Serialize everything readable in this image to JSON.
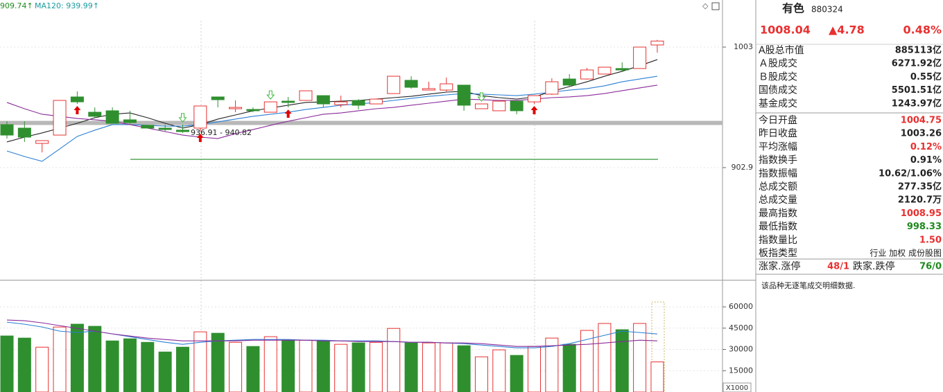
{
  "chart_data": [
    {
      "type": "candlestick",
      "up_color": "#e83030",
      "down_color": "#2f8f2f",
      "open": [
        938.6,
        935.7,
        923.0,
        929.9,
        961.6,
        948.9,
        950.1,
        942.6,
        938.0,
        935.7,
        934.0,
        935.7,
        961.6,
        951.8,
        951.2,
        948.9,
        958.1,
        958.7,
        962.7,
        955.2,
        958.7,
        955.8,
        964.4,
        975.4,
        967.3,
        967.3,
        971.4,
        951.8,
        950.1,
        958.1,
        957.5,
        963.9,
        976.5,
        976.5,
        980.6,
        985.2,
        985.2,
        1004.75
      ],
      "high": [
        941.4,
        941.4,
        925.3,
        958.7,
        966.2,
        952.9,
        952.9,
        950.1,
        938.6,
        938.6,
        938.6,
        954.1,
        961.6,
        958.7,
        952.9,
        957.5,
        961.6,
        966.7,
        962.7,
        962.7,
        959.8,
        959.8,
        978.8,
        978.8,
        974.2,
        977.7,
        971.4,
        955.8,
        958.1,
        958.1,
        962.7,
        977.1,
        980.6,
        985.7,
        986.3,
        990.3,
        1003,
        1008.95
      ],
      "low": [
        927.0,
        924.2,
        915.5,
        929.9,
        955.8,
        944.3,
        939.7,
        938.6,
        935.7,
        932.8,
        931.7,
        932.8,
        952.9,
        948.9,
        948.9,
        948.9,
        952.9,
        958.7,
        952.9,
        952.9,
        951.2,
        955.8,
        964.4,
        968.5,
        967.3,
        966.2,
        950.1,
        951.8,
        950.1,
        947.2,
        955.8,
        963.3,
        970.2,
        976.0,
        980.6,
        982.3,
        985.2,
        998.33
      ],
      "close": [
        929.9,
        928.2,
        925.3,
        958.7,
        957.5,
        945.5,
        939.7,
        940.3,
        935.7,
        934.5,
        932.8,
        954.1,
        959.3,
        952.9,
        950.1,
        957.5,
        957.0,
        966.7,
        955.8,
        957.5,
        954.7,
        959.8,
        978.8,
        969.6,
        968.5,
        972.5,
        954.7,
        955.8,
        958.1,
        950.1,
        962.7,
        974.2,
        971.4,
        984.0,
        986.3,
        984.0,
        1003,
        1008.04
      ],
      "ylim": [
        809.67,
        1042.13
      ],
      "yticks": [
        1003,
        902.9
      ],
      "series": [
        {
          "color": "#222222",
          "values": [
            924.2,
            928.2,
            931.7,
            935.7,
            939.7,
            944.3,
            947.2,
            948.3,
            944.3,
            939.7,
            935.7,
            938.6,
            943.2,
            946.6,
            950.1,
            952.4,
            954.7,
            957.0,
            957.5,
            958.1,
            958.7,
            959.8,
            961.0,
            962.1,
            963.9,
            965.6,
            966.2,
            962.7,
            961.0,
            959.8,
            961.6,
            966.2,
            970.2,
            974.2,
            978.8,
            982.9,
            987.5,
            992.6
          ]
        },
        {
          "color": "#2a7fd4",
          "values": [
            916.7,
            912.1,
            908.1,
            918.4,
            928.8,
            934.0,
            938.6,
            938.6,
            938.0,
            937.4,
            937.4,
            938.6,
            940.9,
            943.2,
            945.5,
            947.2,
            948.9,
            951.2,
            952.9,
            954.7,
            955.8,
            957.0,
            958.7,
            960.4,
            962.1,
            963.3,
            964.4,
            963.9,
            963.3,
            962.7,
            963.9,
            965.6,
            967.3,
            968.5,
            970.8,
            974.2,
            976.5,
            978.8
          ]
        },
        {
          "color": "#8a2a9a",
          "values": [
            957.0,
            951.8,
            947.2,
            945.5,
            943.7,
            942.6,
            941.4,
            938.6,
            935.7,
            932.8,
            929.9,
            928.2,
            927.0,
            931.1,
            934.5,
            938.0,
            941.4,
            944.3,
            947.2,
            948.3,
            950.1,
            951.8,
            952.9,
            954.7,
            956.4,
            958.1,
            959.8,
            959.3,
            958.7,
            958.7,
            959.8,
            961.0,
            961.6,
            962.7,
            964.4,
            966.8,
            969.1,
            971.4
          ]
        }
      ],
      "ma_lines": [
        {
          "label": "909.74↑",
          "value": 909.74,
          "color": "#1f8a1f"
        },
        {
          "label": "MA120: 939.99↑",
          "value": 939.99,
          "color": "#b8b8b8"
        }
      ],
      "annotation": "936.91 - 940.82"
    },
    {
      "type": "bar",
      "ylim": [
        0,
        78580
      ],
      "yticks": [
        15000,
        30000,
        45000,
        60000
      ],
      "unit_label": "X1000",
      "values": [
        39500,
        38000,
        31600,
        45800,
        47800,
        46300,
        36000,
        37500,
        35000,
        28200,
        31600,
        42400,
        41400,
        35000,
        32100,
        39000,
        36500,
        36500,
        36000,
        33600,
        34600,
        35000,
        44800,
        34600,
        34600,
        34600,
        32600,
        24800,
        29700,
        25800,
        32100,
        38000,
        33600,
        43400,
        48300,
        43900,
        48300,
        21207
      ],
      "series": [
        {
          "color": "#2a7fd4",
          "values": [
            49240,
            47775,
            45820,
            42890,
            41910,
            42890,
            40930,
            38970,
            37020,
            35060,
            33590,
            35060,
            36040,
            36530,
            37020,
            37020,
            37020,
            36530,
            36530,
            36040,
            36040,
            36040,
            35550,
            35060,
            35060,
            34570,
            34080,
            33100,
            32130,
            31150,
            31150,
            32130,
            34080,
            37020,
            39950,
            42890,
            41910,
            40930
          ]
        },
        {
          "color": "#8a2a9a",
          "values": [
            50710,
            50220,
            48750,
            46800,
            44840,
            42890,
            40930,
            39460,
            38000,
            37020,
            36040,
            36040,
            36040,
            36040,
            36530,
            36530,
            36530,
            36530,
            36040,
            36040,
            35550,
            35550,
            35550,
            35060,
            35060,
            34570,
            34570,
            34080,
            33100,
            32130,
            32130,
            32620,
            33100,
            33590,
            34570,
            35550,
            36530,
            36040
          ]
        }
      ]
    }
  ],
  "info": {
    "name": "有色",
    "code": "880324",
    "price": "1008.04",
    "change": "▲4.78",
    "pct": "0.48%",
    "block1": [
      [
        "A股总市值",
        "885113亿"
      ],
      [
        "Ａ股成交",
        "6271.92亿"
      ],
      [
        "Ｂ股成交",
        "0.55亿"
      ],
      [
        "国债成交",
        "5501.51亿"
      ],
      [
        "基金成交",
        "1243.97亿"
      ]
    ],
    "block2": [
      [
        "今日开盘",
        "1004.75"
      ],
      [
        "昨日收盘",
        "1003.26"
      ],
      [
        "平均涨幅",
        "0.12%"
      ],
      [
        "指数换手",
        "0.91%"
      ],
      [
        "指数振幅",
        "10.62/1.06%"
      ],
      [
        "总成交额",
        "277.35亿"
      ],
      [
        "总成交量",
        "2120.7万"
      ],
      [
        "最高指数",
        "1008.95"
      ],
      [
        "最低指数",
        "998.33"
      ],
      [
        "指数量比",
        "1.50"
      ],
      [
        "板指类型",
        "行业 加权 成份股图"
      ]
    ],
    "rise_label": "涨家.涨停",
    "rise_value": "48/1",
    "fall_label": "跌家.跌停",
    "fall_value": "76/0",
    "note": "该品种无逐笔成交明细数据."
  }
}
